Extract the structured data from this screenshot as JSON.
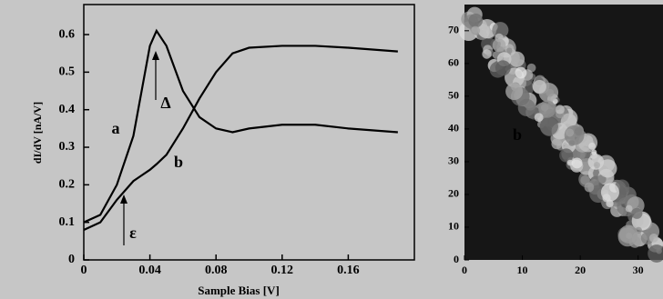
{
  "chart_data": [
    {
      "type": "line",
      "y_label": "dI/dV [nA/V]",
      "x_label": "Sample Bias [V]",
      "x": [
        0,
        0.01,
        0.02,
        0.03,
        0.035,
        0.04,
        0.044,
        0.05,
        0.06,
        0.07,
        0.08,
        0.09,
        0.1,
        0.12,
        0.14,
        0.16,
        0.19
      ],
      "series": [
        {
          "name": "a",
          "color": "#000000",
          "values": [
            0.1,
            0.12,
            0.2,
            0.33,
            0.45,
            0.57,
            0.61,
            0.57,
            0.45,
            0.38,
            0.35,
            0.34,
            0.35,
            0.36,
            0.36,
            0.35,
            0.34
          ]
        },
        {
          "name": "b",
          "color": "#000000",
          "values": [
            0.08,
            0.1,
            0.16,
            0.21,
            0.225,
            0.24,
            0.255,
            0.28,
            0.35,
            0.43,
            0.5,
            0.55,
            0.565,
            0.57,
            0.57,
            0.565,
            0.555
          ]
        }
      ],
      "annotations": [
        "Δ",
        "ε"
      ],
      "xlim": [
        0,
        0.2
      ],
      "ylim": [
        0,
        0.68
      ],
      "xticks": [
        0,
        0.04,
        0.08,
        0.12,
        0.16
      ],
      "yticks": [
        0,
        0.1,
        0.2,
        0.3,
        0.4,
        0.5,
        0.6
      ]
    },
    {
      "type": "image",
      "annotations": [
        "b"
      ],
      "xlim": [
        0,
        34.3
      ],
      "ylim": [
        0,
        78
      ],
      "xticks": [
        0,
        10,
        20,
        30
      ],
      "yticks": [
        0,
        10,
        20,
        30,
        40,
        50,
        60,
        70
      ]
    }
  ]
}
